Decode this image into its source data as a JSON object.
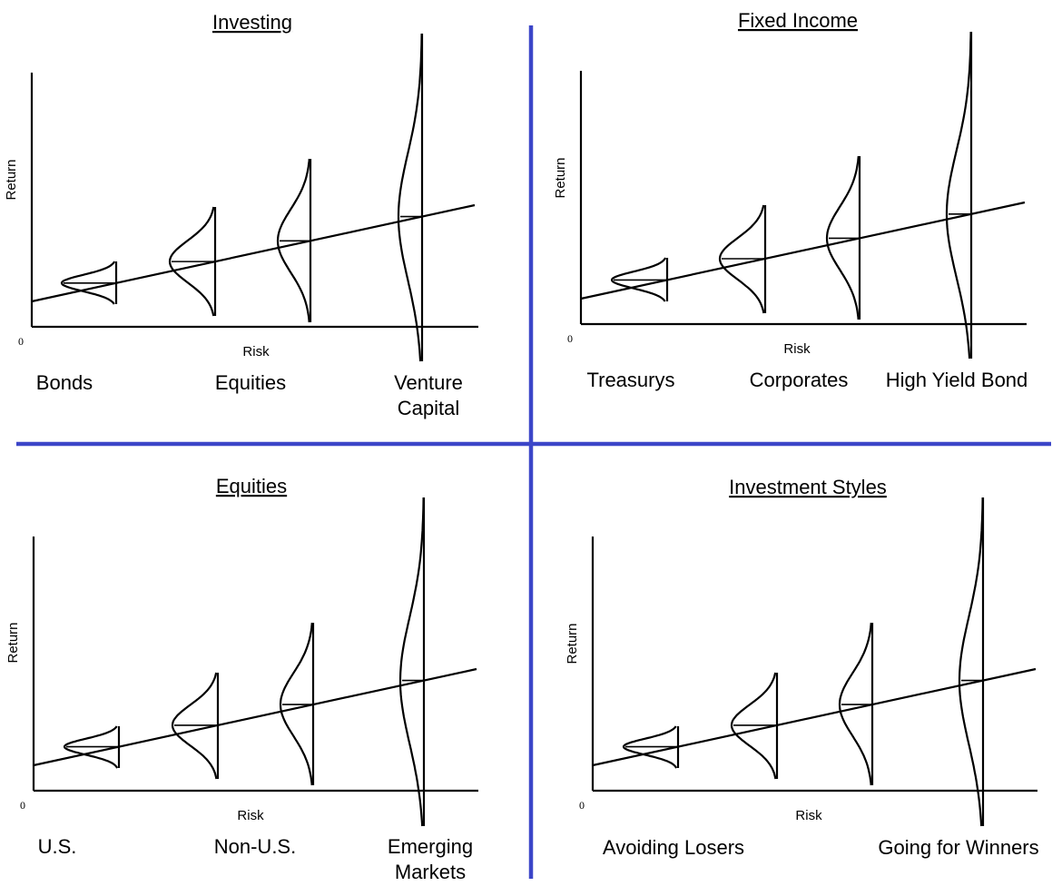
{
  "colors": {
    "divider": "#3c46c8",
    "ink": "#000000"
  },
  "panels": [
    {
      "title": "Investing",
      "y_label": "Return",
      "x_label": "Risk",
      "origin_label": "0",
      "categories": [
        {
          "lines": [
            "Bonds"
          ]
        },
        {
          "lines": [
            "Equities"
          ]
        },
        {
          "lines": [
            "Venture",
            "Capital"
          ]
        }
      ]
    },
    {
      "title": "Fixed Income",
      "y_label": "Return",
      "x_label": "Risk",
      "origin_label": "0",
      "categories": [
        {
          "lines": [
            "Treasurys"
          ]
        },
        {
          "lines": [
            "Corporates"
          ]
        },
        {
          "lines": [
            "High Yield Bond"
          ]
        }
      ]
    },
    {
      "title": "Equities",
      "y_label": "Return",
      "x_label": "Risk",
      "origin_label": "0",
      "categories": [
        {
          "lines": [
            "U.S."
          ]
        },
        {
          "lines": [
            "Non-U.S."
          ]
        },
        {
          "lines": [
            "Emerging",
            "Markets"
          ]
        }
      ]
    },
    {
      "title": "Investment Styles",
      "y_label": "Return",
      "x_label": "Risk",
      "origin_label": "0",
      "categories": [
        {
          "lines": [
            "Avoiding Losers"
          ]
        },
        {
          "lines": [
            "Going for Winners"
          ]
        }
      ]
    }
  ]
}
